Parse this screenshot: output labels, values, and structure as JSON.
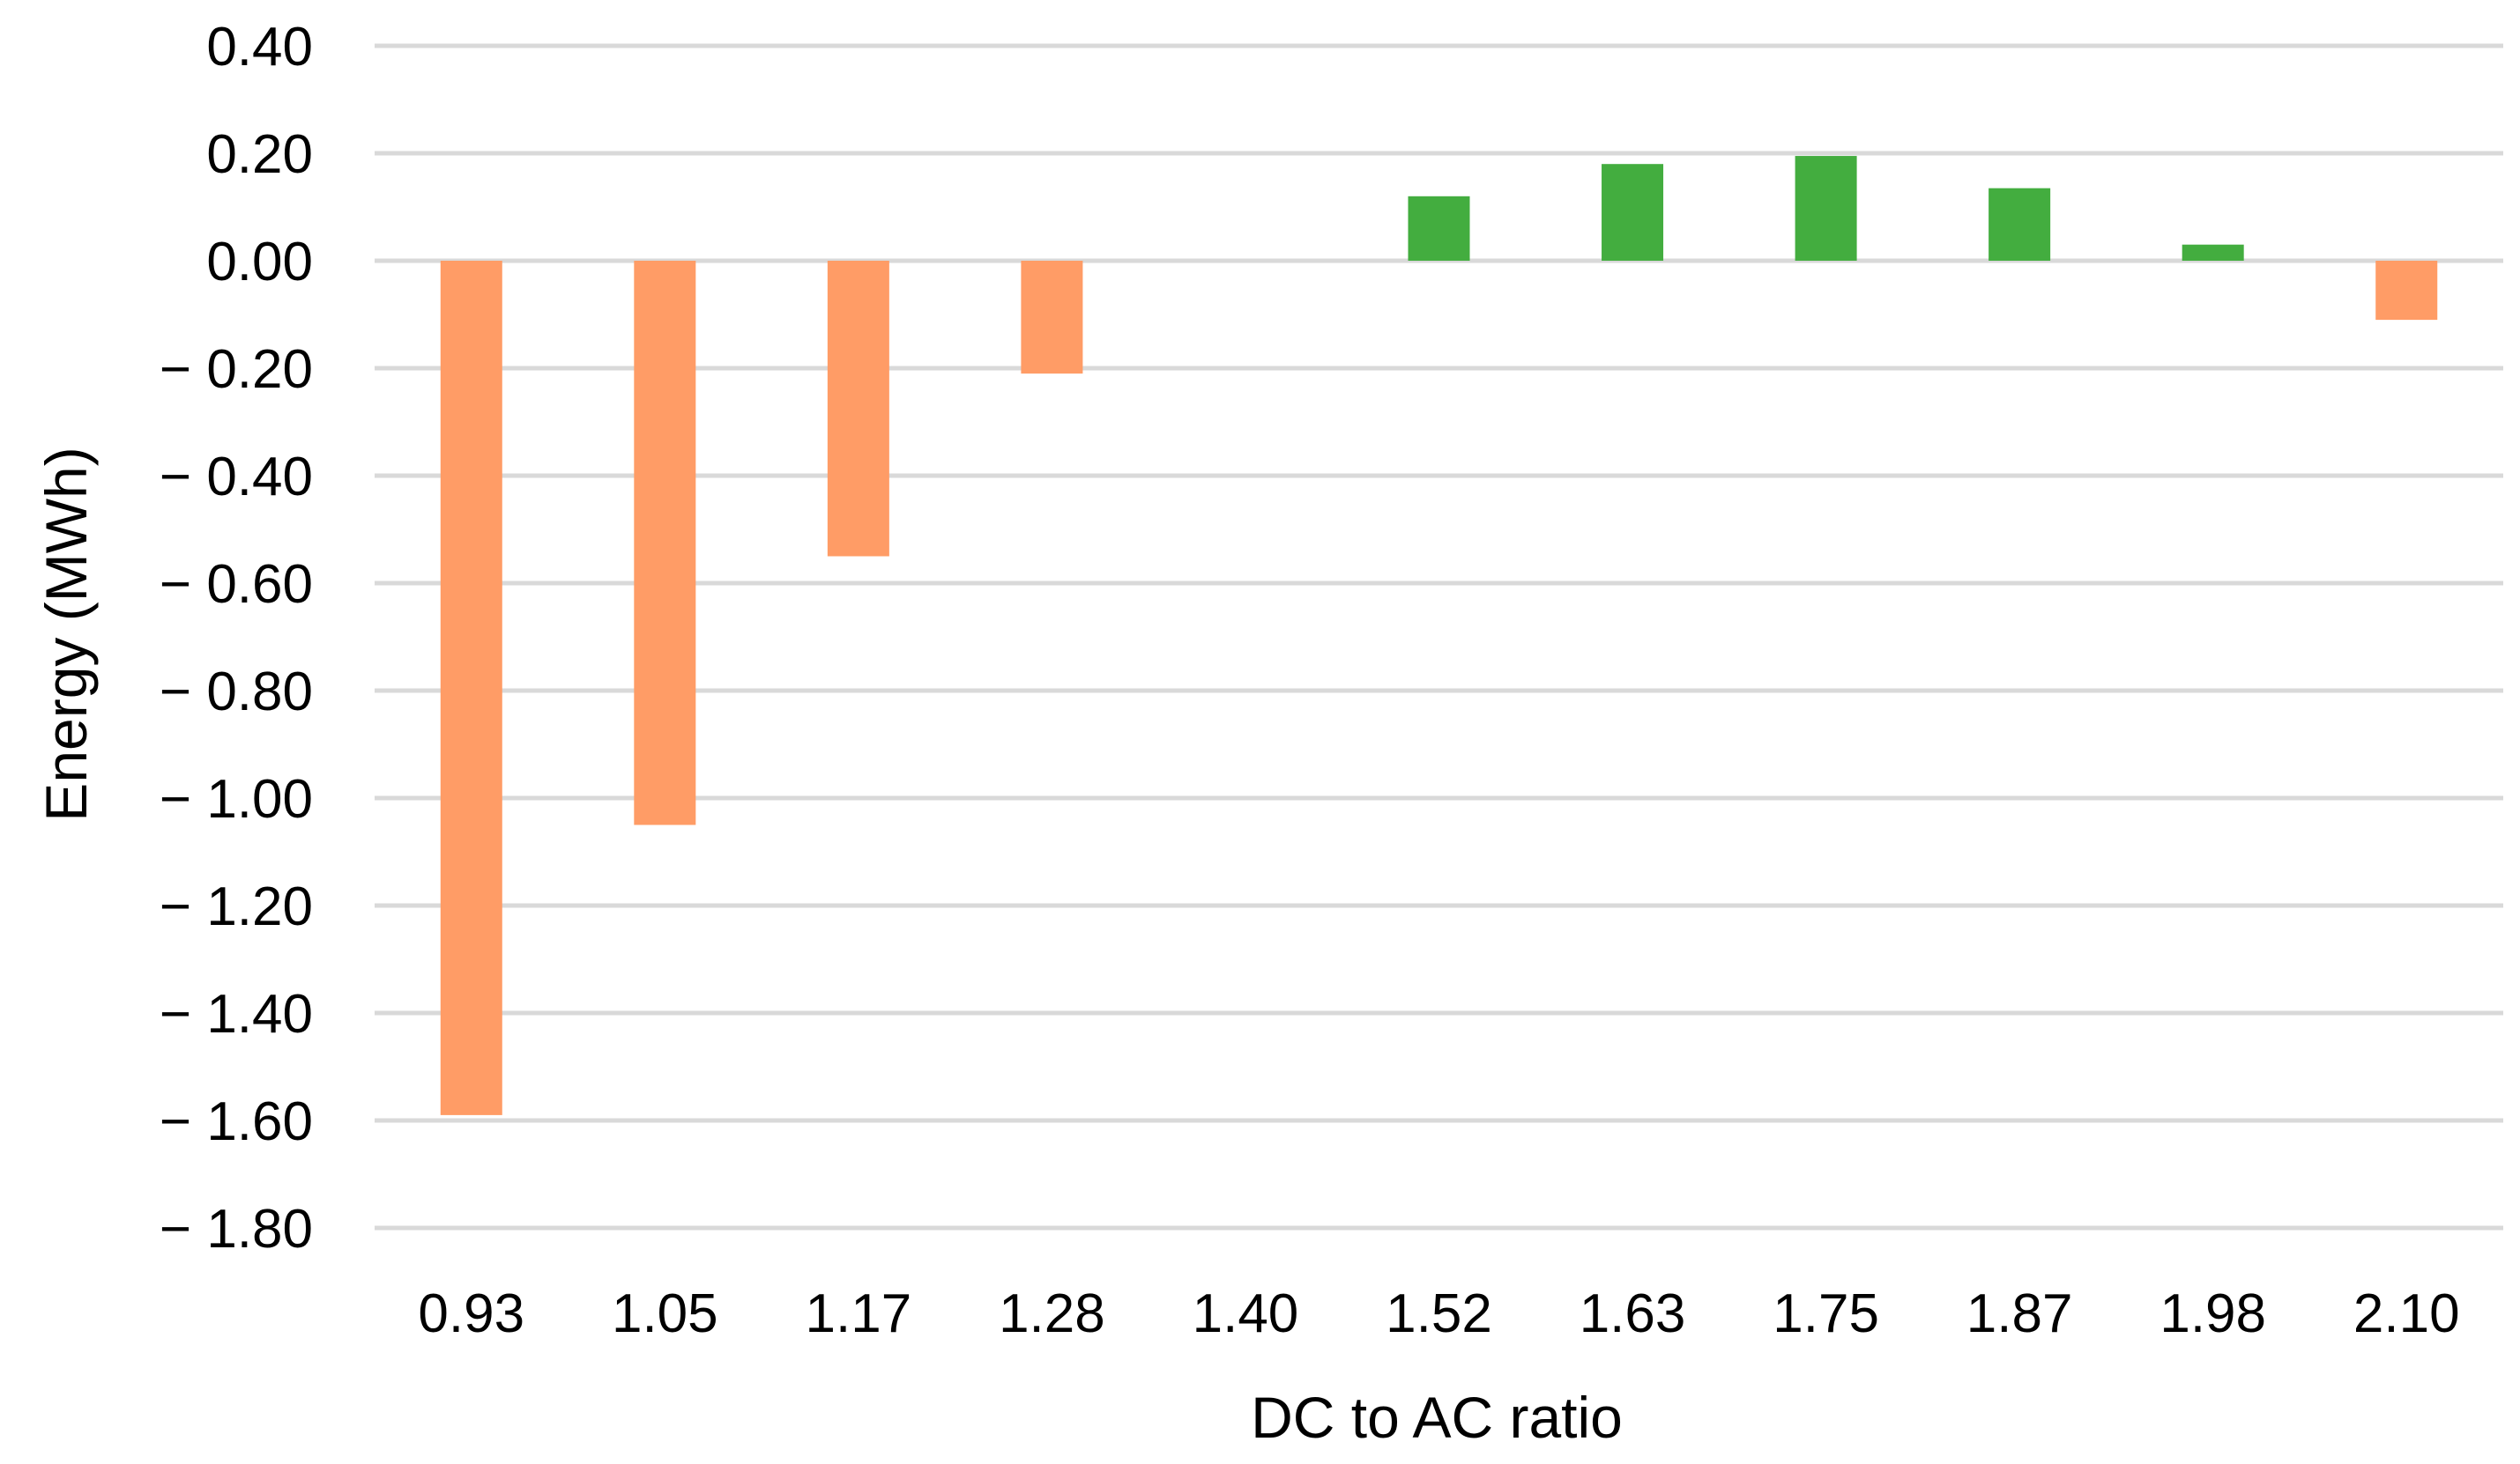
{
  "chart_data": {
    "type": "bar",
    "title": "",
    "xlabel": "DC to AC ratio",
    "ylabel": "Energy (MWh)",
    "ylim": [
      -1.8,
      0.4
    ],
    "grid": true,
    "legend": "none",
    "categories": [
      "0.93",
      "1.05",
      "1.17",
      "1.28",
      "1.40",
      "1.52",
      "1.63",
      "1.75",
      "1.87",
      "1.98",
      "2.10"
    ],
    "values": [
      -1.59,
      -1.05,
      -0.55,
      -0.21,
      0.0,
      0.12,
      0.18,
      0.195,
      0.135,
      0.03,
      -0.11
    ],
    "y_ticks": [
      "0.40",
      "0.20",
      "0.00",
      "− 0.20",
      "− 0.40",
      "− 0.60",
      "− 0.80",
      "− 1.00",
      "− 1.20",
      "− 1.40",
      "− 1.60",
      "− 1.80"
    ],
    "y_tick_values": [
      0.4,
      0.2,
      0.0,
      -0.2,
      -0.4,
      -0.6,
      -0.8,
      -1.0,
      -1.2,
      -1.4,
      -1.6,
      -1.8
    ],
    "colors": {
      "negative": "#FF9C66",
      "positive": "#43AD3F",
      "grid": "#D9D9D9"
    }
  }
}
